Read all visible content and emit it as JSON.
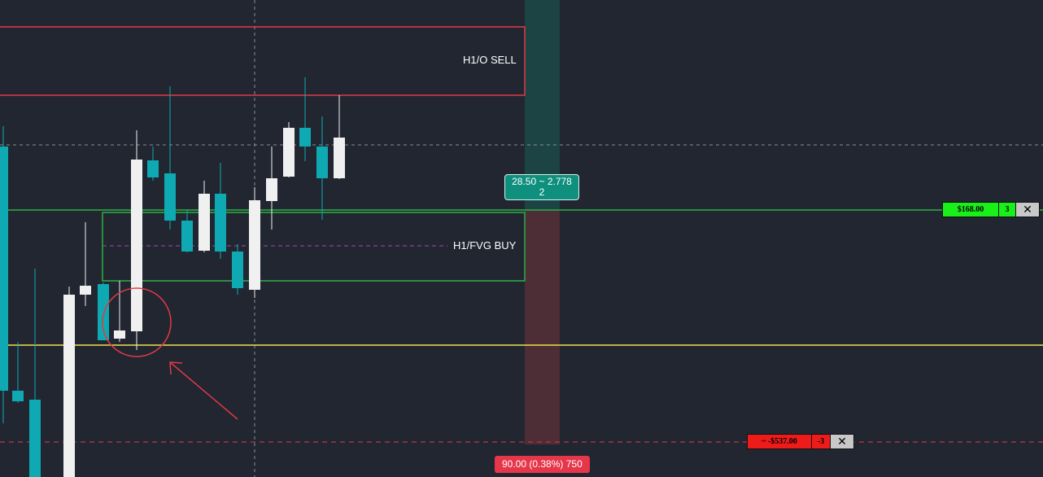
{
  "zones": {
    "sell_label": "H1/O SELL",
    "buy_label": "H1/FVG BUY"
  },
  "position_tool": {
    "target_label": "28.50 ~ 2.778\n2",
    "target_line1": "28.50 ~ 2.778",
    "target_line2": "2",
    "stop_label": "90.00 (0.38%) 750"
  },
  "orders": {
    "take_profit": {
      "price": "$168.00",
      "qty": "3",
      "close": "✕"
    },
    "stop_loss": {
      "price": "~ -$537.00",
      "qty": "-3",
      "close": "✕"
    }
  },
  "colors": {
    "background": "#212631",
    "bull_candle": "#f0f0f0",
    "bear_candle": "#0fa9b3",
    "sell_zone": "#e03a46",
    "buy_zone": "#2db046",
    "level_line": "#f0e24a",
    "target_zone": "#1c4444",
    "stop_zone": "#4d2d36",
    "annotation": "#e03a46"
  },
  "icons": {
    "close": "close-icon",
    "arrow": "arrow-annotation",
    "circle": "circle-annotation"
  }
}
